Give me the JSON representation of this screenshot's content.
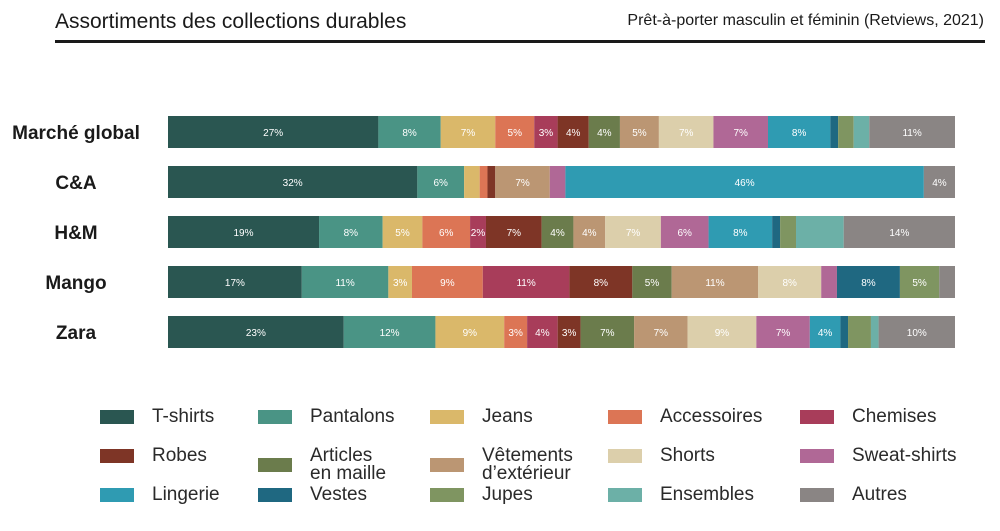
{
  "header": {
    "title": "Assortiments des collections durables",
    "subtitle": "Prêt-à-porter masculin et féminin (Retviews, 2021)"
  },
  "chart_data": {
    "type": "bar",
    "orientation": "horizontal",
    "stacked": true,
    "normalized": true,
    "categories": [
      "Marché global",
      "C&A",
      "H&M",
      "Mango",
      "Zara"
    ],
    "series": [
      {
        "name": "T-shirts",
        "color": "#2a5651",
        "values": [
          27,
          32,
          19,
          17,
          23
        ],
        "labels": [
          "27%",
          "32%",
          "19%",
          "17%",
          "23%"
        ]
      },
      {
        "name": "Pantalons",
        "color": "#4a9485",
        "values": [
          8,
          6,
          8,
          11,
          12
        ],
        "labels": [
          "8%",
          "6%",
          "8%",
          "11%",
          "12%"
        ]
      },
      {
        "name": "Jeans",
        "color": "#dab86a",
        "values": [
          7,
          2,
          5,
          3,
          9
        ],
        "labels": [
          "7%",
          "",
          "5%",
          "3%",
          "9%"
        ]
      },
      {
        "name": "Accessoires",
        "color": "#dc7555",
        "values": [
          5,
          1,
          6,
          9,
          3
        ],
        "labels": [
          "5%",
          "",
          "6%",
          "9%",
          "3%"
        ]
      },
      {
        "name": "Chemises",
        "color": "#a83d5a",
        "values": [
          3,
          0,
          2,
          11,
          4
        ],
        "labels": [
          "3%",
          "",
          "2%",
          "11%",
          "4%"
        ]
      },
      {
        "name": "Robes",
        "color": "#7e3526",
        "values": [
          4,
          1,
          7,
          8,
          3
        ],
        "labels": [
          "4%",
          "",
          "7%",
          "8%",
          "3%"
        ]
      },
      {
        "name": "Articles\nen maille",
        "color": "#6b7c4c",
        "values": [
          4,
          0,
          4,
          5,
          7
        ],
        "labels": [
          "4%",
          "",
          "4%",
          "5%",
          "7%"
        ]
      },
      {
        "name": "Vêtements\nd’extérieur",
        "color": "#bb9673",
        "values": [
          5,
          7,
          4,
          11,
          7
        ],
        "labels": [
          "5%",
          "7%",
          "4%",
          "11%",
          "7%"
        ]
      },
      {
        "name": "Shorts",
        "color": "#dccfab",
        "values": [
          7,
          0,
          7,
          8,
          9
        ],
        "labels": [
          "7%",
          "",
          "7%",
          "8%",
          "9%"
        ]
      },
      {
        "name": "Sweat-shirts",
        "color": "#b06896",
        "values": [
          7,
          2,
          6,
          2,
          7
        ],
        "labels": [
          "7%",
          "",
          "6%",
          "",
          "7%"
        ]
      },
      {
        "name": "Lingerie",
        "color": "#2f9bb2",
        "values": [
          8,
          46,
          8,
          0,
          4
        ],
        "labels": [
          "8%",
          "46%",
          "8%",
          "",
          "4%"
        ]
      },
      {
        "name": "Vestes",
        "color": "#1f6881",
        "values": [
          1,
          0,
          1,
          8,
          1
        ],
        "labels": [
          "",
          "",
          "",
          "8%",
          ""
        ]
      },
      {
        "name": "Jupes",
        "color": "#7f9561",
        "values": [
          2,
          0,
          2,
          5,
          3
        ],
        "labels": [
          "",
          "",
          "",
          "5%",
          ""
        ]
      },
      {
        "name": "Ensembles",
        "color": "#6cb0a7",
        "values": [
          2,
          0,
          6,
          0,
          1
        ],
        "labels": [
          "",
          "",
          "",
          "",
          ""
        ]
      },
      {
        "name": "Autres",
        "color": "#8a8584",
        "values": [
          11,
          4,
          14,
          2,
          10
        ],
        "labels": [
          "11%",
          "4%",
          "14%",
          "",
          "10%"
        ]
      }
    ],
    "legend": "bottom",
    "grid": false
  }
}
